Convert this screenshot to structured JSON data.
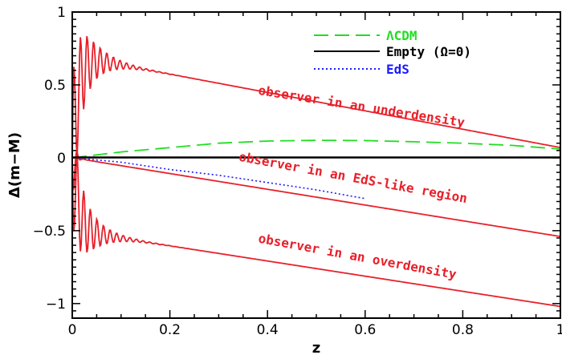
{
  "chart_data": {
    "type": "line",
    "xlabel": "z",
    "ylabel": "Δ(m−M)",
    "xlim": [
      0,
      1
    ],
    "ylim": [
      -1.1,
      1
    ],
    "grid": false,
    "legend_position": "top-right",
    "x_ticks": [
      {
        "value": 0,
        "label": "0"
      },
      {
        "value": 0.2,
        "label": "0.2"
      },
      {
        "value": 0.4,
        "label": "0.4"
      },
      {
        "value": 0.6,
        "label": "0.6"
      },
      {
        "value": 0.8,
        "label": "0.8"
      },
      {
        "value": 1,
        "label": "1"
      }
    ],
    "y_ticks": [
      {
        "value": 1,
        "label": "1"
      },
      {
        "value": 0.5,
        "label": "0.5"
      },
      {
        "value": 0,
        "label": "0"
      },
      {
        "value": -0.5,
        "label": "−0.5"
      },
      {
        "value": -1,
        "label": "−1"
      }
    ],
    "legend": [
      {
        "label": "ΛCDM",
        "color": "#22dd22",
        "style": "long-dash"
      },
      {
        "label": "Empty (Ω=0)",
        "color": "#000000",
        "style": "solid"
      },
      {
        "label": "EdS",
        "color": "#1a1aff",
        "style": "dotted"
      }
    ],
    "series": [
      {
        "name": "ΛCDM",
        "color": "#22dd22",
        "style": "long-dash",
        "x": [
          0,
          0.05,
          0.1,
          0.2,
          0.3,
          0.4,
          0.5,
          0.6,
          0.7,
          0.8,
          0.9,
          1.0
        ],
        "y": [
          0,
          0.02,
          0.04,
          0.07,
          0.1,
          0.115,
          0.12,
          0.118,
          0.11,
          0.1,
          0.085,
          0.06
        ]
      },
      {
        "name": "Empty (Ω=0)",
        "color": "#000000",
        "style": "solid",
        "x": [
          0,
          1
        ],
        "y": [
          0,
          0
        ]
      },
      {
        "name": "EdS",
        "color": "#1a1aff",
        "style": "dotted",
        "x": [
          0,
          0.05,
          0.1,
          0.2,
          0.3,
          0.4,
          0.5,
          0.6
        ],
        "y": [
          0,
          -0.015,
          -0.03,
          -0.08,
          -0.12,
          -0.17,
          -0.22,
          -0.28
        ]
      },
      {
        "name": "observer in an underdensity",
        "color": "#e8202a",
        "style": "solid",
        "start": 0.7,
        "end": 0.07,
        "oscillation": {
          "amplitude": 0.5,
          "period": 0.0135,
          "decay": 0.035
        }
      },
      {
        "name": "observer in an EdS-like region",
        "color": "#e8202a",
        "style": "solid",
        "start": 0,
        "end": -0.54,
        "oscillation": {
          "amplitude": -0.48,
          "period": 0.0135,
          "decay": 0.004
        }
      },
      {
        "name": "observer in an overdensity",
        "color": "#e8202a",
        "style": "solid",
        "start": -0.5,
        "end": -1.02,
        "oscillation": {
          "amplitude": -0.42,
          "period": 0.0135,
          "decay": 0.035
        }
      }
    ],
    "annotations": [
      {
        "text": "observer in an underdensity",
        "x": 0.38,
        "y": 0.435,
        "angle_deg": 9
      },
      {
        "text": "observer in an EdS-like region",
        "x": 0.34,
        "y": -0.02,
        "angle_deg": 10.5
      },
      {
        "text": "observer in an overdensity",
        "x": 0.38,
        "y": -0.58,
        "angle_deg": 10.5
      }
    ]
  }
}
